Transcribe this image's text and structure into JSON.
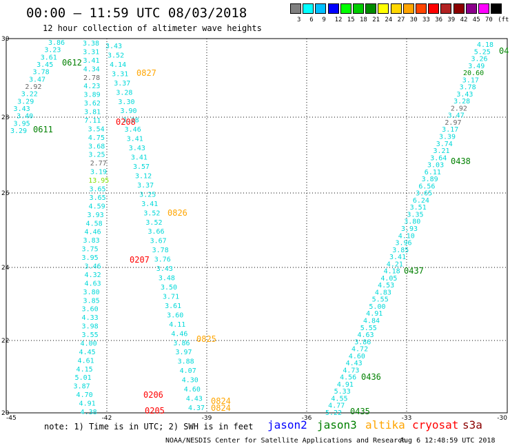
{
  "header": {
    "title": "00:00 – 11:59 UTC 08/03/2018",
    "subtitle": "12 hour collection of altimeter wave heights"
  },
  "legend": {
    "levels": [
      "3",
      "6",
      "9",
      "12",
      "15",
      "18",
      "21",
      "24",
      "27",
      "30",
      "33",
      "36",
      "39",
      "42",
      "45",
      "70",
      "(ft)"
    ],
    "colors": [
      "#808080",
      "#00ffff",
      "#00bfff",
      "#0000ff",
      "#00ff00",
      "#00cd00",
      "#008b00",
      "#ffff00",
      "#ffd700",
      "#ffa500",
      "#ff4500",
      "#ff0000",
      "#b22222",
      "#8b0000",
      "#8b008b",
      "#ff00ff",
      "#000000"
    ]
  },
  "axes": {
    "x_ticks": [
      "-45",
      "-42",
      "-39",
      "-36",
      "-33",
      "-30"
    ],
    "y_ticks": [
      "30",
      "28",
      "26",
      "24",
      "22",
      "20"
    ]
  },
  "passes": [
    {
      "label": "0612",
      "color": "#008000"
    },
    {
      "label": "0611",
      "color": "#008000"
    },
    {
      "label": "0827",
      "color": "#ffa500"
    },
    {
      "label": "0208",
      "color": "#ff0000"
    },
    {
      "label": "0826",
      "color": "#ffa500"
    },
    {
      "label": "0207",
      "color": "#ff0000"
    },
    {
      "label": "0825",
      "color": "#ffa500"
    },
    {
      "label": "0206",
      "color": "#ff0000"
    },
    {
      "label": "0205",
      "color": "#ff0000"
    },
    {
      "label": "0824",
      "color": "#ffa500"
    },
    {
      "label": "0824",
      "color": "#ffa500"
    },
    {
      "label": "04",
      "color": "#008000"
    },
    {
      "label": "0438",
      "color": "#008000"
    },
    {
      "label": "0437",
      "color": "#008000"
    },
    {
      "label": "0436",
      "color": "#008000"
    },
    {
      "label": "0435",
      "color": "#008000"
    }
  ],
  "tracks": [
    {
      "name": "track-a",
      "values": [
        "3.86",
        "3.23",
        "3.61",
        "3.45",
        "3.78",
        "3.47",
        "2.92",
        "3.22",
        "3.29",
        "3.43",
        "3.40",
        "3.95",
        "3.29"
      ]
    },
    {
      "name": "track-b",
      "values": [
        "3.38",
        "3.31",
        "3.41",
        "4.34",
        "2.78",
        "4.23",
        "3.89",
        "3.62",
        "3.81",
        "7.11",
        "3.54",
        "4.75",
        "3.68",
        "3.25",
        "2.77",
        "3.19",
        "13.95",
        "3.65",
        "3.65",
        "4.59",
        "3.93",
        "4.58",
        "4.46",
        "3.83",
        "3.75",
        "3.95",
        "3.46",
        "4.32",
        "4.63",
        "3.80",
        "3.85",
        "3.60",
        "4.33",
        "3.98",
        "3.55",
        "4.00",
        "4.45",
        "4.61",
        "4.15",
        "5.01",
        "3.87",
        "4.70",
        "4.91",
        "4.38"
      ]
    },
    {
      "name": "track-c",
      "values": [
        "3.43",
        "3.52",
        "4.14",
        "3.31",
        "3.37",
        "3.28",
        "3.30",
        "3.90",
        "3.28",
        "3.46",
        "3.41",
        "3.43",
        "3.41",
        "3.57",
        "3.12",
        "3.37",
        "3.25",
        "3.41",
        "3.52",
        "3.52",
        "3.66",
        "3.67",
        "3.78",
        "3.76",
        "3.43",
        "3.48",
        "3.50",
        "3.71",
        "3.61",
        "3.60",
        "4.11",
        "4.46",
        "3.86",
        "3.97",
        "3.88",
        "4.07",
        "4.30",
        "4.60",
        "4.43",
        "4.37"
      ]
    },
    {
      "name": "track-d",
      "values": [
        "4.18",
        "5.25",
        "3.26",
        "3.49",
        "20.60",
        "3.17",
        "3.78",
        "3.43",
        "3.28",
        "2.92",
        "3.47",
        "2.97",
        "3.17",
        "3.39",
        "3.74",
        "3.21",
        "3.64",
        "3.03",
        "6.11",
        "3.89",
        "6.56",
        "3.65",
        "6.24",
        "3.51",
        "3.35",
        "3.80",
        "3.93",
        "4.10",
        "3.96",
        "3.85",
        "3.41",
        "4.21",
        "4.18",
        "4.05",
        "4.53",
        "4.83",
        "5.55",
        "5.00",
        "4.91",
        "4.84",
        "5.55",
        "4.63",
        "3.86",
        "4.72",
        "4.60",
        "4.43",
        "4.73",
        "4.56",
        "4.91",
        "5.33",
        "4.55",
        "4.77",
        "5.22"
      ]
    }
  ],
  "footer": {
    "note": "note: 1) Time is in UTC; 2) SWH is in feet",
    "satellites": [
      {
        "name": "jason2",
        "color": "#0000ff"
      },
      {
        "name": "jason3",
        "color": "#008000"
      },
      {
        "name": "altika",
        "color": "#ffa500"
      },
      {
        "name": "cryosat",
        "color": "#ff0000"
      },
      {
        "name": "s3a",
        "color": "#8b0000"
      }
    ],
    "credit": "NOAA/NESDIS Center for Satellite Applications and Research",
    "timestamp": "Aug  6 12:48:59 UTC 2018"
  }
}
